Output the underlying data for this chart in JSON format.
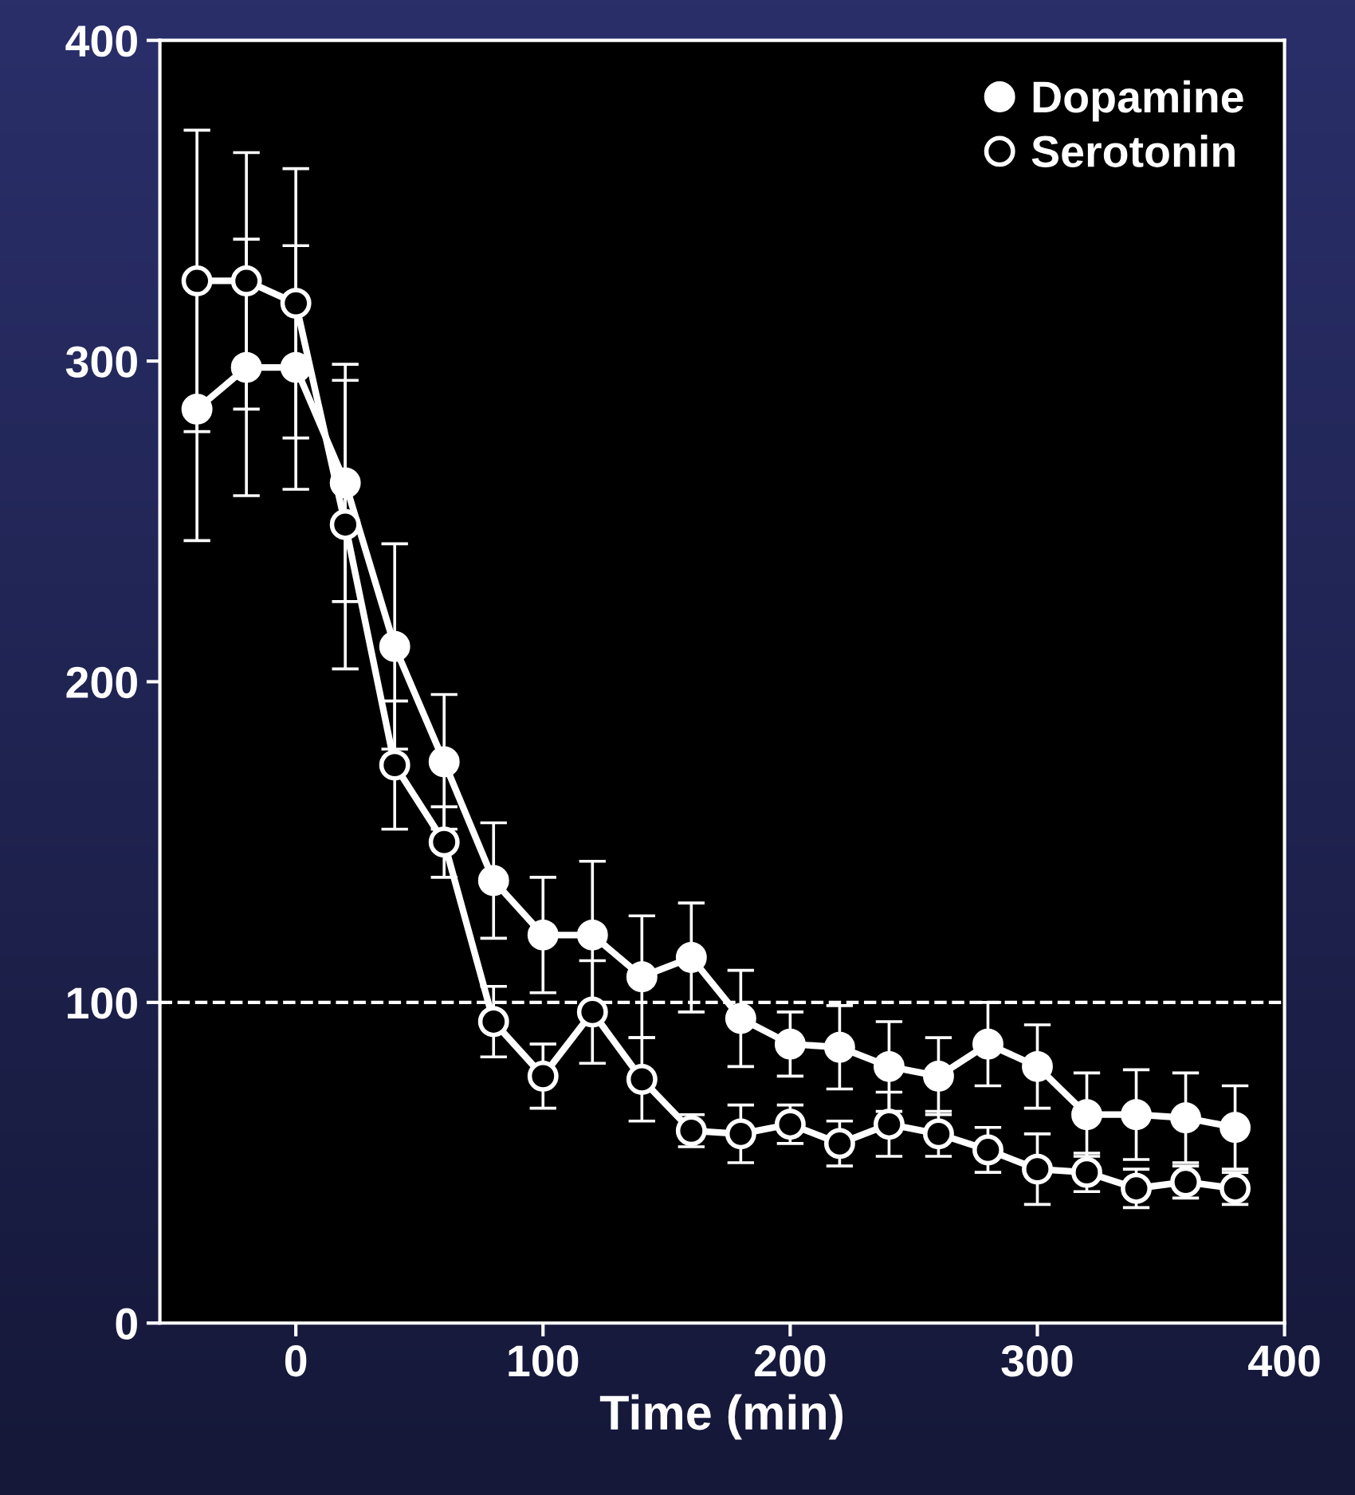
{
  "chart_data": {
    "type": "line",
    "xlabel": "Time (min)",
    "x": [
      -40,
      -20,
      0,
      20,
      40,
      60,
      80,
      100,
      120,
      140,
      160,
      180,
      200,
      220,
      240,
      260,
      280,
      300,
      320,
      340,
      360,
      380
    ],
    "series": [
      {
        "name": "Dopamine",
        "color": "#ffffff",
        "marker": "circle",
        "values": [
          285,
          298,
          298,
          262,
          211,
          175,
          138,
          121,
          121,
          108,
          114,
          95,
          87,
          86,
          80,
          77,
          87,
          80,
          65,
          65,
          64,
          61
        ],
        "errors": [
          41,
          40,
          38,
          37,
          32,
          21,
          18,
          18,
          23,
          19,
          17,
          15,
          10,
          13,
          14,
          12,
          13,
          13,
          13,
          14,
          14,
          13
        ]
      },
      {
        "name": "Serotonin",
        "color": "#ffffff",
        "marker": "circle",
        "values": [
          325,
          325,
          318,
          249,
          174,
          150,
          94,
          77,
          97,
          76,
          60,
          59,
          62,
          56,
          62,
          59,
          54,
          48,
          47,
          42,
          44,
          42
        ],
        "errors": [
          47,
          40,
          42,
          45,
          20,
          11,
          11,
          10,
          16,
          13,
          5,
          9,
          6,
          7,
          10,
          7,
          7,
          11,
          6,
          6,
          5,
          5
        ]
      }
    ],
    "xlim": [
      -55,
      400
    ],
    "xticks": [
      0,
      100,
      200,
      300,
      400
    ],
    "ylim": [
      0,
      400
    ],
    "yticks": [
      0,
      100,
      200,
      300,
      400
    ],
    "ref_lines": [
      {
        "axis": "y",
        "value": 100,
        "color": "#ffffff",
        "line_style": "dashed"
      }
    ],
    "grid": false,
    "legend": "top right",
    "line_style": "solid"
  }
}
